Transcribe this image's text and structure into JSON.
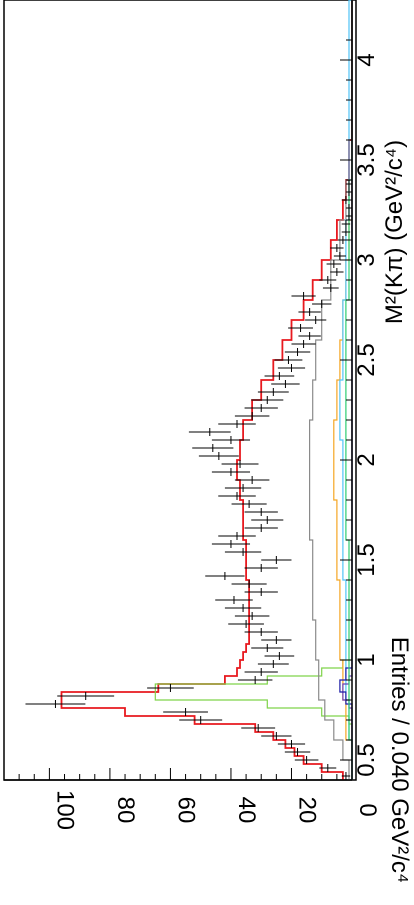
{
  "chart_data": {
    "type": "histogram-with-fit",
    "orientation": "rotated-90-clockwise",
    "xlabel": "M²(Kπ) (GeV²/c⁴)",
    "ylabel": "Entries / 0.040 GeV²/c⁴",
    "xlim": [
      0.4,
      4.3
    ],
    "ylim": [
      0,
      115
    ],
    "x_ticks": [
      "0.5",
      "1",
      "1.5",
      "2",
      "2.5",
      "3",
      "3.5",
      "4"
    ],
    "y_ticks": [
      "0",
      "20",
      "40",
      "60",
      "80",
      "100"
    ],
    "grid": false,
    "legend": "none",
    "data": {
      "x": [
        0.42,
        0.46,
        0.5,
        0.54,
        0.58,
        0.62,
        0.66,
        0.7,
        0.74,
        0.78,
        0.82,
        0.86,
        0.9,
        0.94,
        0.98,
        1.02,
        1.06,
        1.1,
        1.14,
        1.18,
        1.22,
        1.26,
        1.3,
        1.34,
        1.38,
        1.42,
        1.46,
        1.5,
        1.54,
        1.58,
        1.62,
        1.66,
        1.7,
        1.74,
        1.78,
        1.82,
        1.86,
        1.9,
        1.94,
        1.98,
        2.02,
        2.06,
        2.1,
        2.14,
        2.18,
        2.22,
        2.26,
        2.3,
        2.34,
        2.38,
        2.42,
        2.46,
        2.5,
        2.54,
        2.58,
        2.62,
        2.66,
        2.7,
        2.74,
        2.78,
        2.82,
        2.86,
        2.9,
        2.94,
        2.98,
        3.02,
        3.06,
        3.1,
        3.14,
        3.18,
        3.22,
        3.26,
        3.3,
        3.34,
        3.38
      ],
      "y": [
        2,
        8,
        15,
        18,
        20,
        25,
        31,
        50,
        55,
        98,
        88,
        60,
        32,
        30,
        26,
        24,
        28,
        25,
        30,
        35,
        33,
        36,
        39,
        30,
        34,
        42,
        30,
        25,
        36,
        40,
        38,
        30,
        28,
        30,
        34,
        38,
        36,
        33,
        40,
        37,
        44,
        46,
        40,
        47,
        38,
        33,
        30,
        28,
        26,
        22,
        24,
        20,
        21,
        18,
        16,
        14,
        17,
        12,
        14,
        10,
        16,
        7,
        8,
        5,
        6,
        4,
        5,
        3,
        2,
        2,
        1,
        1,
        2,
        1,
        1
      ],
      "yerr": [
        1.4,
        2.8,
        3.9,
        4.2,
        4.5,
        5.0,
        5.6,
        7.1,
        7.4,
        9.9,
        9.4,
        7.7,
        5.7,
        5.5,
        5.1,
        4.9,
        5.3,
        5.0,
        5.5,
        5.9,
        5.7,
        6.0,
        6.2,
        5.5,
        5.8,
        6.5,
        5.5,
        5.0,
        6.0,
        6.3,
        6.2,
        5.5,
        5.3,
        5.5,
        5.8,
        6.2,
        6.0,
        5.7,
        6.3,
        6.1,
        6.6,
        6.8,
        6.3,
        6.9,
        6.2,
        5.7,
        5.5,
        5.3,
        5.1,
        4.7,
        4.9,
        4.5,
        4.6,
        4.2,
        4.0,
        3.7,
        4.1,
        3.5,
        3.7,
        3.2,
        4.0,
        2.6,
        2.8,
        2.2,
        2.4,
        2.0,
        2.2,
        1.7,
        1.4,
        1.4,
        1.0,
        1.0,
        1.4,
        1.0,
        1.0
      ]
    },
    "components": [
      {
        "color": "#e8191f",
        "x": [
          0.4,
          0.44,
          0.48,
          0.52,
          0.56,
          0.6,
          0.64,
          0.68,
          0.72,
          0.76,
          0.8,
          0.84,
          0.88,
          0.92,
          0.96,
          1.0,
          1.04,
          1.08,
          1.2,
          1.4,
          1.6,
          1.8,
          1.9,
          2.0,
          2.1,
          2.2,
          2.3,
          2.4,
          2.5,
          2.6,
          2.7,
          2.8,
          2.9,
          3.0,
          3.1,
          3.2,
          3.3,
          3.4,
          3.6,
          4.3
        ],
        "y": [
          3,
          10,
          16,
          19,
          22,
          26,
          32,
          52,
          75,
          96,
          96,
          64,
          42,
          38,
          37,
          36,
          35,
          34,
          34,
          35,
          36,
          37,
          38,
          37,
          36,
          33,
          30,
          26,
          23,
          20,
          16,
          13,
          10,
          7,
          5,
          3,
          2,
          1,
          0,
          0
        ]
      },
      {
        "color": "#7fd34a",
        "x": [
          0.4,
          0.64,
          0.68,
          0.72,
          0.76,
          0.8,
          0.84,
          0.88,
          0.92,
          0.96,
          1.0,
          4.3
        ],
        "y": [
          0,
          0,
          1,
          10,
          28,
          65,
          65,
          28,
          10,
          3,
          0,
          0
        ]
      },
      {
        "color": "#8a8a8a",
        "x": [
          0.4,
          0.5,
          0.6,
          0.7,
          0.8,
          0.9,
          1.0,
          1.2,
          1.4,
          1.6,
          1.8,
          2.0,
          2.2,
          2.4,
          2.6,
          2.8,
          3.0,
          3.2,
          3.4,
          4.3
        ],
        "y": [
          1,
          3,
          6,
          9,
          11,
          11,
          12,
          13,
          13,
          14,
          14,
          14,
          13,
          12,
          10,
          7,
          4,
          2,
          0,
          0
        ]
      },
      {
        "color": "#f5a623",
        "x": [
          0.4,
          0.6,
          0.8,
          1.0,
          1.2,
          1.4,
          1.6,
          1.8,
          2.0,
          2.2,
          2.4,
          2.6,
          2.8,
          3.0,
          3.2,
          4.3
        ],
        "y": [
          0,
          2,
          3,
          4,
          4,
          5,
          5,
          6,
          6,
          5,
          4,
          3,
          2,
          1,
          0,
          0
        ]
      },
      {
        "color": "#4fc3f7",
        "x": [
          0.4,
          0.6,
          0.8,
          1.0,
          1.4,
          1.8,
          2.1,
          2.4,
          2.8,
          3.2,
          4.3
        ],
        "y": [
          0,
          1,
          2,
          2,
          3,
          3,
          4,
          3,
          2,
          1,
          0
        ]
      },
      {
        "color": "#6a3fb5",
        "x": [
          0.4,
          0.7,
          0.76,
          0.8,
          0.84,
          0.88,
          0.92,
          4.3
        ],
        "y": [
          0,
          0,
          1,
          3,
          3,
          1,
          0,
          0
        ]
      },
      {
        "color": "#1a1aa6",
        "x": [
          0.4,
          0.72,
          0.78,
          0.84,
          0.9,
          0.96,
          4.3
        ],
        "y": [
          0,
          0,
          2,
          4,
          2,
          0,
          0
        ]
      },
      {
        "color": "#2ecc71",
        "x": [
          0.4,
          0.6,
          1.0,
          1.6,
          2.2,
          2.8,
          3.4,
          4.3
        ],
        "y": [
          0,
          1,
          1,
          2,
          2,
          1,
          0,
          0
        ]
      }
    ]
  }
}
